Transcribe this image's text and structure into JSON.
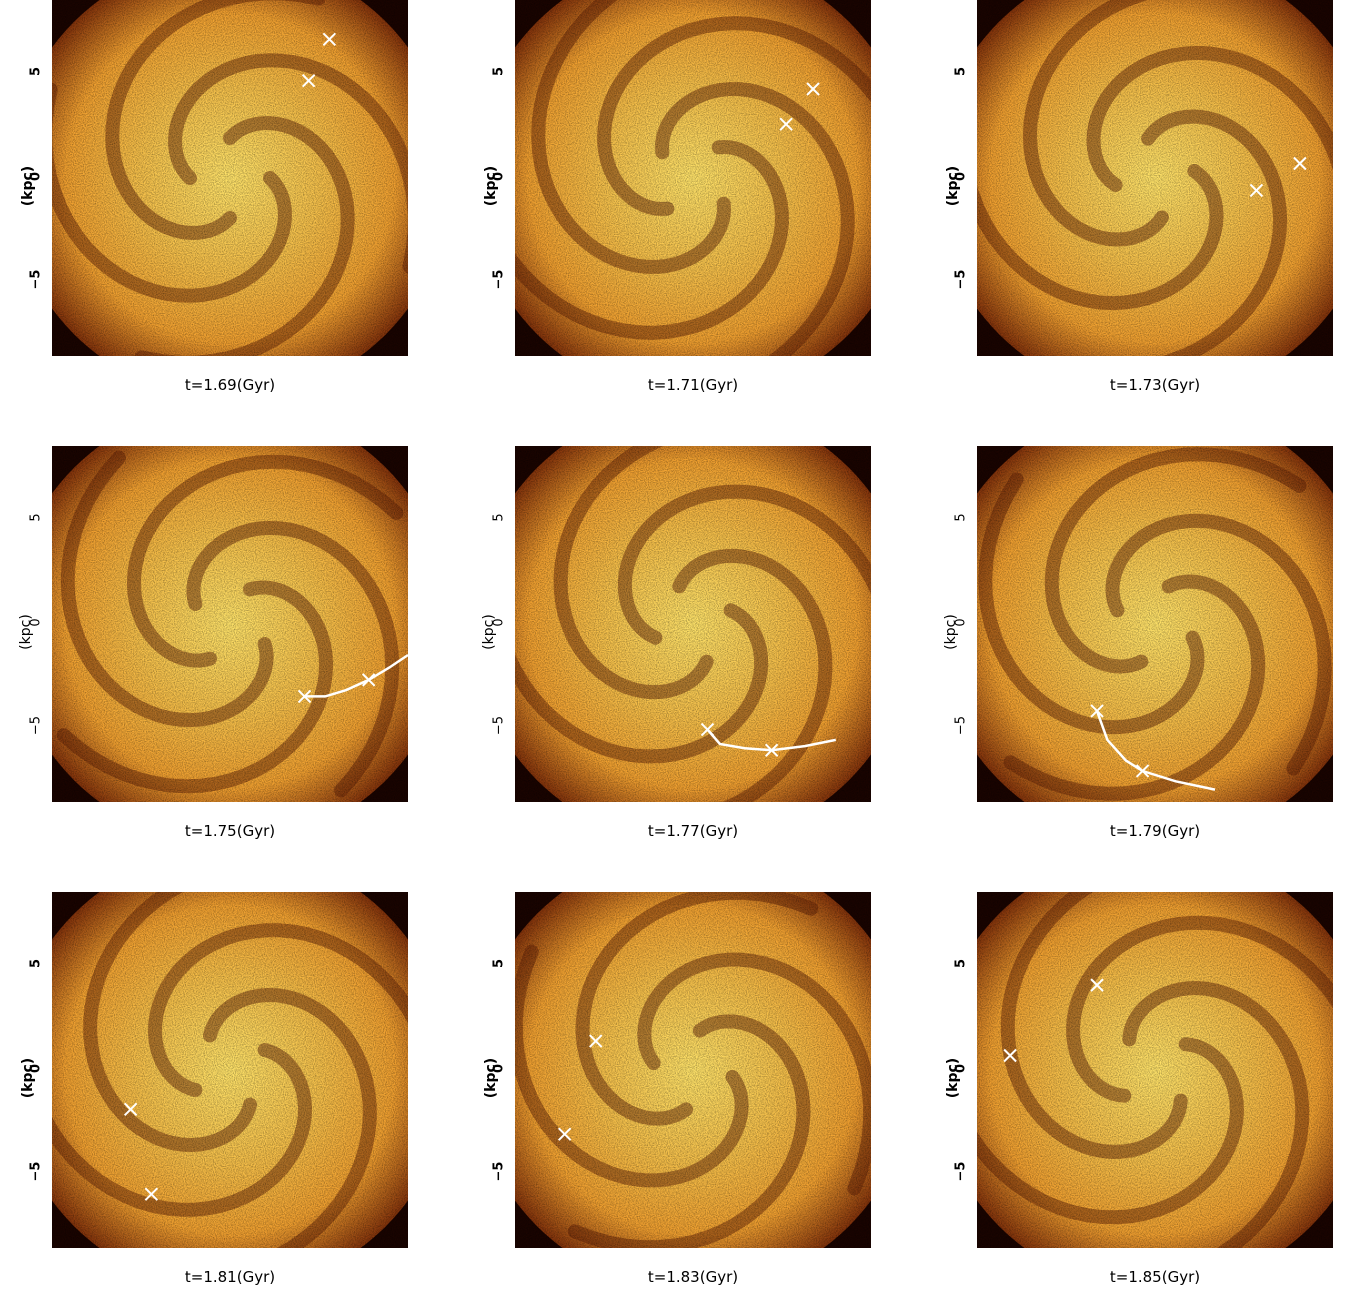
{
  "axis": {
    "ylabel": "(kpc)",
    "yticks": [
      "5",
      "0",
      "−5"
    ],
    "ytick_values": [
      5,
      0,
      -5
    ],
    "range_kpc": [
      -8.6,
      8.6
    ]
  },
  "colors": {
    "bright": "#ffe36a",
    "mid": "#f0a030",
    "dark": "#7a2a08",
    "edge": "#1a0400",
    "marker": "#ffffff"
  },
  "panels": [
    {
      "caption": "t=1.69(Gyr)",
      "rotation": 0,
      "markers": [
        [
          4.8,
          6.7
        ],
        [
          3.8,
          4.7
        ]
      ],
      "track": []
    },
    {
      "caption": "t=1.71(Gyr)",
      "rotation": 40,
      "markers": [
        [
          5.8,
          4.3
        ],
        [
          4.5,
          2.6
        ]
      ],
      "track": []
    },
    {
      "caption": "t=1.73(Gyr)",
      "rotation": 80,
      "markers": [
        [
          7.0,
          0.7
        ],
        [
          4.9,
          -0.6
        ]
      ],
      "track": []
    },
    {
      "caption": "t=1.75(Gyr)",
      "rotation": 120,
      "markers": [
        [
          6.7,
          -2.7
        ],
        [
          3.6,
          -3.5
        ]
      ],
      "track": [
        [
          8.6,
          -1.5
        ],
        [
          7.7,
          -2.1
        ],
        [
          6.7,
          -2.7
        ],
        [
          5.6,
          -3.2
        ],
        [
          4.6,
          -3.5
        ],
        [
          3.6,
          -3.5
        ]
      ]
    },
    {
      "caption": "t=1.77(Gyr)",
      "rotation": 160,
      "markers": [
        [
          0.7,
          -5.1
        ],
        [
          3.8,
          -6.1
        ]
      ],
      "track": [
        [
          0.7,
          -5.1
        ],
        [
          1.3,
          -5.8
        ],
        [
          2.5,
          -6.0
        ],
        [
          3.8,
          -6.1
        ],
        [
          5.4,
          -5.9
        ],
        [
          6.9,
          -5.6
        ]
      ]
    },
    {
      "caption": "t=1.79(Gyr)",
      "rotation": 200,
      "markers": [
        [
          -2.8,
          -4.2
        ],
        [
          -0.6,
          -7.1
        ]
      ],
      "track": [
        [
          -2.8,
          -4.2
        ],
        [
          -2.3,
          -5.6
        ],
        [
          -1.4,
          -6.6
        ],
        [
          -0.6,
          -7.1
        ],
        [
          1.0,
          -7.6
        ],
        [
          2.9,
          -8.0
        ]
      ]
    },
    {
      "caption": "t=1.81(Gyr)",
      "rotation": 240,
      "markers": [
        [
          -4.8,
          -1.9
        ],
        [
          -3.8,
          -6.0
        ]
      ],
      "track": []
    },
    {
      "caption": "t=1.83(Gyr)",
      "rotation": 280,
      "markers": [
        [
          -4.7,
          1.4
        ],
        [
          -6.2,
          -3.1
        ]
      ],
      "track": []
    },
    {
      "caption": "t=1.85(Gyr)",
      "rotation": 320,
      "markers": [
        [
          -2.8,
          4.1
        ],
        [
          -7.0,
          0.7
        ]
      ],
      "track": []
    }
  ]
}
